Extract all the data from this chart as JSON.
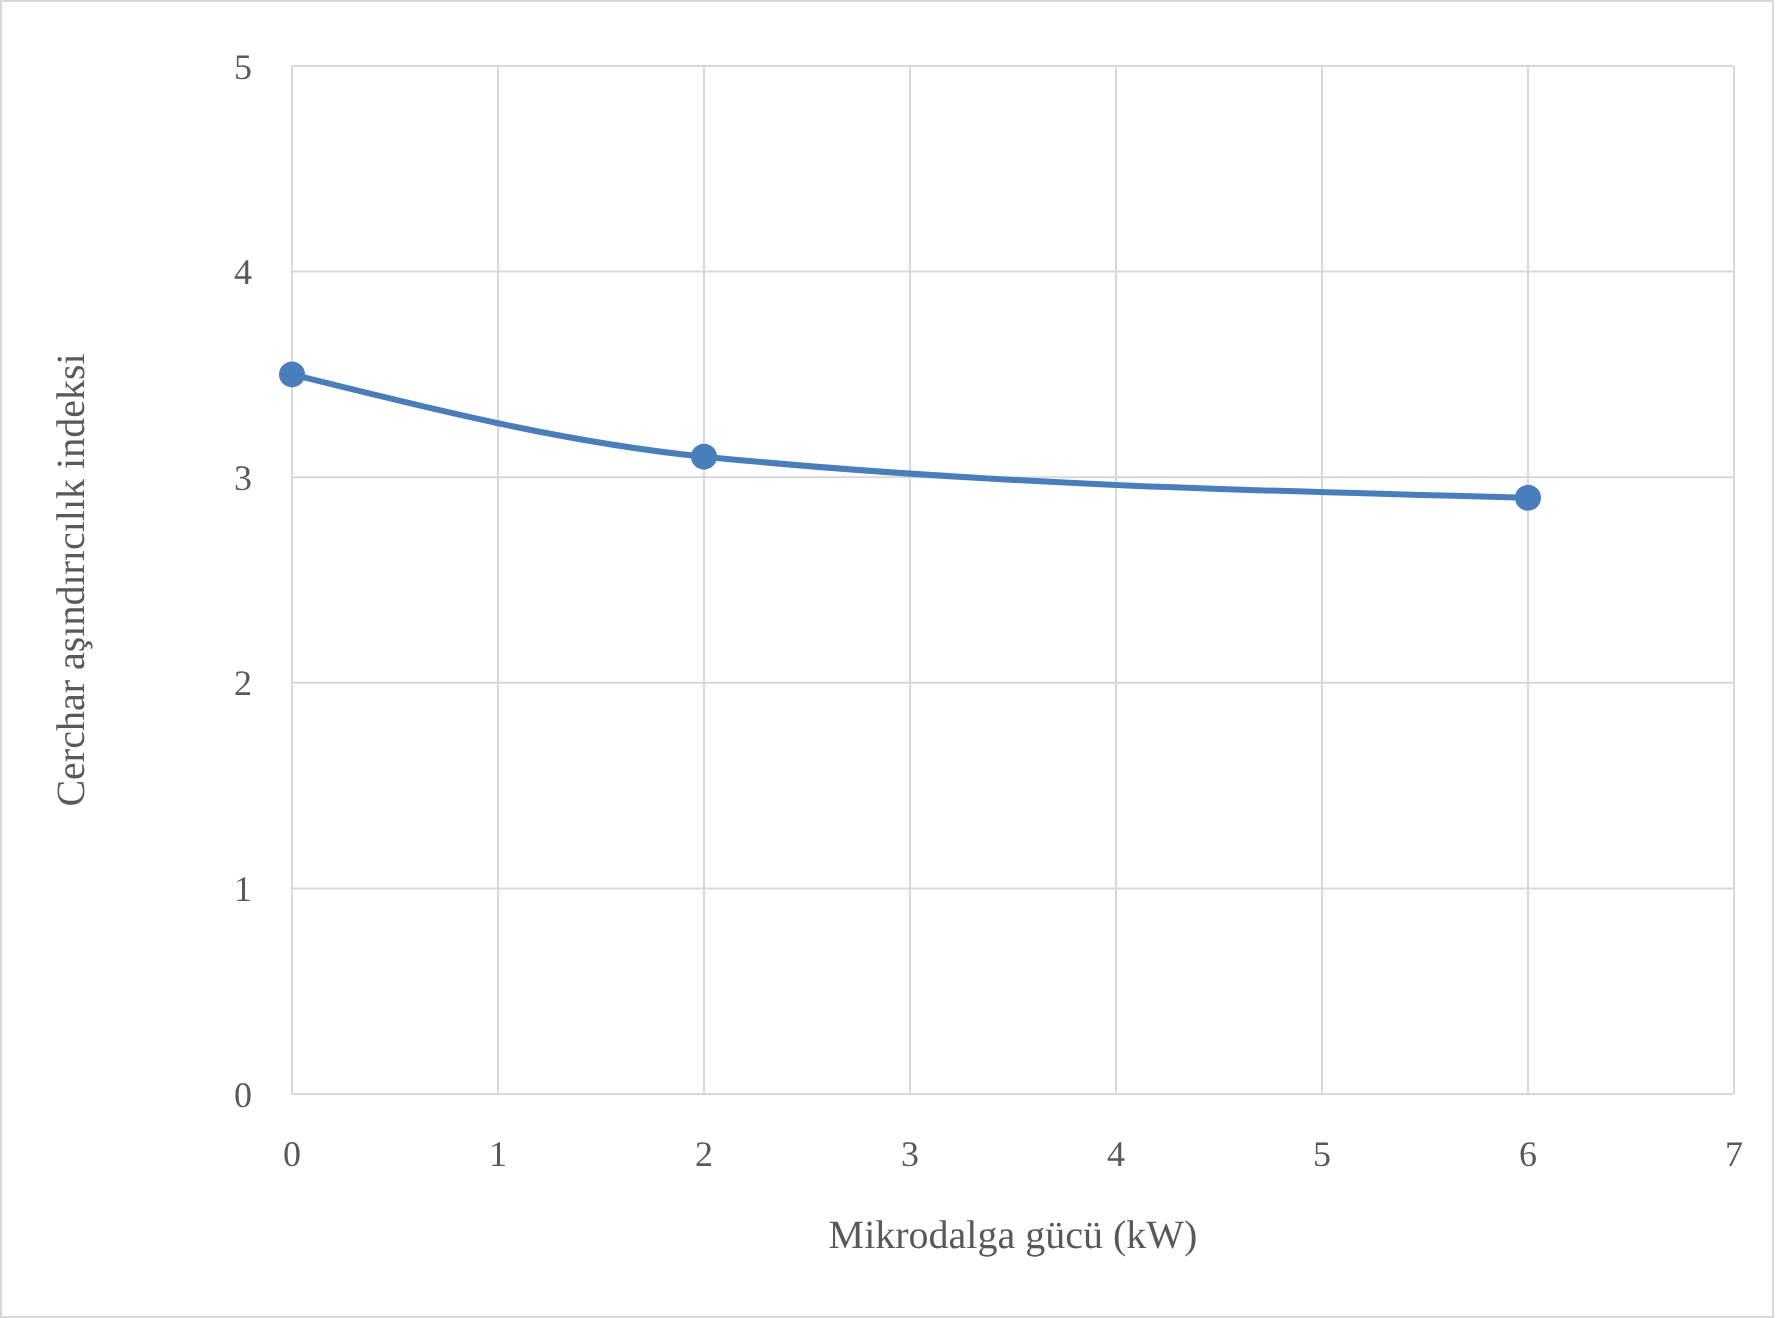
{
  "chart_data": {
    "type": "line",
    "xlabel": "Mikrodalga gücü (kW)",
    "ylabel": "Cerchar aşındırıcılık indeksi",
    "x": [
      0,
      2,
      6
    ],
    "series": [
      {
        "color": "#4a7ebb",
        "values": [
          3.5,
          3.1,
          2.9
        ]
      }
    ],
    "xlim": [
      0,
      7
    ],
    "xticks": [
      0,
      1,
      2,
      3,
      4,
      5,
      6,
      7
    ],
    "ylim": [
      0,
      5
    ],
    "yticks": [
      0,
      1,
      2,
      3,
      4,
      5
    ],
    "grid": true,
    "marker": "circle",
    "line_style": "solid"
  }
}
